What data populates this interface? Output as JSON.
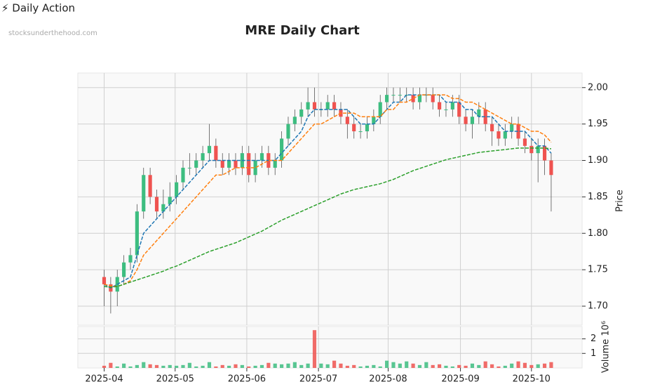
{
  "header": {
    "brand": "⚡ Daily Action",
    "site": "stocksunderthehood.com"
  },
  "chart_data": {
    "type": "candlestick",
    "title": "MRE Daily Chart",
    "ylabel": "Price",
    "up_color": "#3dbd80",
    "down_color": "#ef5350",
    "grid": true,
    "xlim": [
      -4,
      72.7
    ],
    "xticks": [
      {
        "value": 0,
        "label": "2025-04"
      },
      {
        "value": 10.8,
        "label": "2025-05"
      },
      {
        "value": 21.7,
        "label": "2025-06"
      },
      {
        "value": 32.6,
        "label": "2025-07"
      },
      {
        "value": 43.2,
        "label": "2025-08"
      },
      {
        "value": 54.2,
        "label": "2025-09"
      },
      {
        "value": 65,
        "label": "2025-10"
      }
    ],
    "ylim": [
      1.674,
      2.02
    ],
    "yticks": [
      {
        "value": 1.7,
        "label": "1.70"
      },
      1.75,
      {
        "value": 1.8,
        "label": "1.80"
      },
      1.85,
      {
        "value": 1.9,
        "label": "1.90"
      },
      1.95,
      {
        "value": 2.0,
        "label": "2.00"
      }
    ],
    "open": [
      1.74,
      1.73,
      1.72,
      1.74,
      1.76,
      1.77,
      1.83,
      1.88,
      1.85,
      1.83,
      1.84,
      1.85,
      1.87,
      1.89,
      1.89,
      1.9,
      1.91,
      1.92,
      1.9,
      1.89,
      1.9,
      1.89,
      1.91,
      1.88,
      1.9,
      1.91,
      1.89,
      1.9,
      1.93,
      1.95,
      1.96,
      1.97,
      1.98,
      1.97,
      1.97,
      1.98,
      1.97,
      1.96,
      1.95,
      1.94,
      1.94,
      1.95,
      1.96,
      1.98,
      1.99,
      1.99,
      1.99,
      1.99,
      1.98,
      1.99,
      1.99,
      1.98,
      1.97,
      1.97,
      1.98,
      1.96,
      1.95,
      1.96,
      1.97,
      1.95,
      1.94,
      1.93,
      1.94,
      1.95,
      1.93,
      1.92,
      1.91,
      1.92,
      1.9
    ],
    "high": [
      1.75,
      1.74,
      1.75,
      1.77,
      1.78,
      1.84,
      1.89,
      1.89,
      1.86,
      1.86,
      1.87,
      1.88,
      1.9,
      1.91,
      1.91,
      1.92,
      1.95,
      1.93,
      1.91,
      1.91,
      1.91,
      1.92,
      1.92,
      1.91,
      1.92,
      1.92,
      1.91,
      1.94,
      1.96,
      1.97,
      1.98,
      2.0,
      2.0,
      1.98,
      1.99,
      1.99,
      1.98,
      1.97,
      1.96,
      1.95,
      1.96,
      1.97,
      1.99,
      2.0,
      2.0,
      2.0,
      2.0,
      2.0,
      2.0,
      2.0,
      2.0,
      1.99,
      1.98,
      1.99,
      1.99,
      1.97,
      1.97,
      1.98,
      1.98,
      1.96,
      1.95,
      1.95,
      1.96,
      1.96,
      1.94,
      1.93,
      1.93,
      1.93,
      1.91
    ],
    "low": [
      1.7,
      1.69,
      1.7,
      1.73,
      1.75,
      1.76,
      1.82,
      1.84,
      1.82,
      1.82,
      1.83,
      1.84,
      1.86,
      1.88,
      1.88,
      1.89,
      1.9,
      1.89,
      1.88,
      1.88,
      1.88,
      1.88,
      1.87,
      1.87,
      1.89,
      1.88,
      1.88,
      1.89,
      1.92,
      1.94,
      1.95,
      1.96,
      1.96,
      1.96,
      1.96,
      1.96,
      1.95,
      1.93,
      1.93,
      1.93,
      1.93,
      1.94,
      1.95,
      1.97,
      1.98,
      1.98,
      1.98,
      1.97,
      1.97,
      1.98,
      1.97,
      1.96,
      1.96,
      1.96,
      1.95,
      1.94,
      1.93,
      1.95,
      1.94,
      1.92,
      1.92,
      1.92,
      1.93,
      1.92,
      1.91,
      1.9,
      1.87,
      1.88,
      1.83
    ],
    "close": [
      1.73,
      1.72,
      1.74,
      1.76,
      1.77,
      1.83,
      1.88,
      1.85,
      1.83,
      1.84,
      1.85,
      1.87,
      1.89,
      1.89,
      1.9,
      1.91,
      1.92,
      1.9,
      1.89,
      1.9,
      1.89,
      1.91,
      1.88,
      1.9,
      1.91,
      1.89,
      1.9,
      1.93,
      1.95,
      1.96,
      1.97,
      1.98,
      1.97,
      1.97,
      1.98,
      1.97,
      1.96,
      1.95,
      1.94,
      1.94,
      1.95,
      1.96,
      1.98,
      1.99,
      1.99,
      1.99,
      1.99,
      1.98,
      1.99,
      1.99,
      1.98,
      1.97,
      1.97,
      1.98,
      1.96,
      1.95,
      1.96,
      1.97,
      1.95,
      1.94,
      1.93,
      1.94,
      1.95,
      1.93,
      1.92,
      1.91,
      1.92,
      1.9,
      1.88
    ],
    "moving_averages": [
      {
        "color": "#1f77b4",
        "values": [
          1.73,
          1.725,
          1.73,
          1.735,
          1.74,
          1.77,
          1.8,
          1.81,
          1.82,
          1.83,
          1.84,
          1.85,
          1.86,
          1.87,
          1.88,
          1.89,
          1.9,
          1.9,
          1.9,
          1.9,
          1.9,
          1.9,
          1.9,
          1.9,
          1.9,
          1.9,
          1.9,
          1.91,
          1.92,
          1.93,
          1.94,
          1.96,
          1.97,
          1.97,
          1.97,
          1.97,
          1.97,
          1.97,
          1.96,
          1.95,
          1.95,
          1.95,
          1.96,
          1.97,
          1.98,
          1.98,
          1.99,
          1.99,
          1.99,
          1.99,
          1.99,
          1.99,
          1.98,
          1.98,
          1.98,
          1.97,
          1.97,
          1.96,
          1.96,
          1.96,
          1.95,
          1.94,
          1.94,
          1.94,
          1.94,
          1.93,
          1.92,
          1.92,
          1.91
        ]
      },
      {
        "color": "#ff7f0e",
        "values": [
          1.73,
          1.728,
          1.727,
          1.73,
          1.735,
          1.75,
          1.77,
          1.78,
          1.79,
          1.8,
          1.81,
          1.82,
          1.83,
          1.84,
          1.85,
          1.86,
          1.87,
          1.88,
          1.88,
          1.885,
          1.89,
          1.89,
          1.89,
          1.89,
          1.895,
          1.9,
          1.9,
          1.9,
          1.91,
          1.92,
          1.93,
          1.94,
          1.95,
          1.95,
          1.955,
          1.96,
          1.965,
          1.965,
          1.965,
          1.96,
          1.96,
          1.96,
          1.96,
          1.97,
          1.97,
          1.98,
          1.98,
          1.985,
          1.99,
          1.99,
          1.99,
          1.99,
          1.99,
          1.985,
          1.985,
          1.98,
          1.98,
          1.975,
          1.97,
          1.965,
          1.96,
          1.955,
          1.95,
          1.95,
          1.945,
          1.94,
          1.94,
          1.935,
          1.925
        ]
      },
      {
        "color": "#2ca02c",
        "values": [
          1.727,
          1.726,
          1.727,
          1.73,
          1.733,
          1.736,
          1.739,
          1.742,
          1.745,
          1.748,
          1.752,
          1.755,
          1.759,
          1.763,
          1.767,
          1.771,
          1.775,
          1.778,
          1.781,
          1.784,
          1.787,
          1.791,
          1.795,
          1.799,
          1.803,
          1.808,
          1.813,
          1.818,
          1.822,
          1.826,
          1.83,
          1.834,
          1.838,
          1.842,
          1.846,
          1.85,
          1.854,
          1.857,
          1.86,
          1.862,
          1.864,
          1.866,
          1.868,
          1.871,
          1.874,
          1.878,
          1.882,
          1.886,
          1.889,
          1.892,
          1.895,
          1.898,
          1.901,
          1.903,
          1.905,
          1.907,
          1.909,
          1.911,
          1.912,
          1.913,
          1.914,
          1.915,
          1.916,
          1.917,
          1.917,
          1.917,
          1.917,
          1.917,
          1.916
        ]
      }
    ],
    "volume": {
      "ylabel": "Volume 10⁶",
      "ylim": [
        0,
        2.85
      ],
      "yticks": [
        1,
        2
      ],
      "values": [
        0.15,
        0.35,
        0.1,
        0.3,
        0.1,
        0.2,
        0.4,
        0.25,
        0.2,
        0.15,
        0.2,
        0.15,
        0.2,
        0.35,
        0.1,
        0.15,
        0.4,
        0.1,
        0.2,
        0.15,
        0.25,
        0.2,
        0.1,
        0.15,
        0.2,
        0.35,
        0.3,
        0.25,
        0.3,
        0.4,
        0.2,
        0.3,
        2.6,
        0.3,
        0.25,
        0.5,
        0.3,
        0.15,
        0.2,
        0.1,
        0.15,
        0.2,
        0.1,
        0.5,
        0.4,
        0.3,
        0.45,
        0.3,
        0.2,
        0.4,
        0.2,
        0.25,
        0.15,
        0.1,
        0.2,
        0.15,
        0.3,
        0.2,
        0.45,
        0.25,
        0.1,
        0.15,
        0.3,
        0.45,
        0.35,
        0.2,
        0.25,
        0.3,
        0.4
      ]
    }
  }
}
